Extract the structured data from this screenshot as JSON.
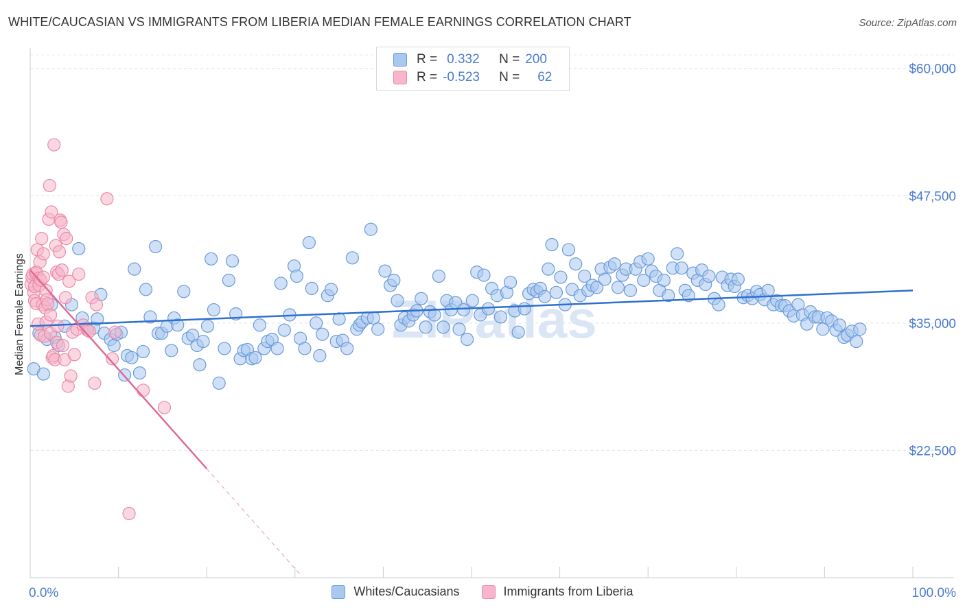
{
  "title": "WHITE/CAUCASIAN VS IMMIGRANTS FROM LIBERIA MEDIAN FEMALE EARNINGS CORRELATION CHART",
  "source": "Source: ZipAtlas.com",
  "legend": {
    "rows": [
      {
        "r_label": "R =",
        "r_value": "0.332",
        "n_label": "N =",
        "n_value": "200"
      },
      {
        "r_label": "R =",
        "r_value": "-0.523",
        "n_label": "N =",
        "n_value": "62"
      }
    ]
  },
  "colors": {
    "blue_fill": "#a9c8f0",
    "blue_stroke": "#6a9ad8",
    "blue_line": "#2f6fcf",
    "pink_fill": "#f7b6cb",
    "pink_stroke": "#e88aa8",
    "pink_line": "#e06a95",
    "axis_text": "#4a7bd0"
  },
  "chart_data": {
    "type": "scatter",
    "xlabel": "",
    "ylabel": "Median Female Earnings",
    "xlim": [
      0,
      100
    ],
    "ylim": [
      10000,
      62000
    ],
    "x_tick_labels": [
      "0.0%",
      "100.0%"
    ],
    "y_ticks": [
      22500,
      35000,
      47500,
      60000
    ],
    "y_tick_labels": [
      "$22,500",
      "$35,000",
      "$47,500",
      "$60,000"
    ],
    "grid": true,
    "watermark": "ZIPatlas",
    "series": [
      {
        "name": "Whites/Caucasians",
        "color": "#a9c8f0",
        "trend": {
          "x": [
            0,
            100
          ],
          "y": [
            34700,
            38200
          ]
        },
        "points": [
          [
            0.4,
            30500
          ],
          [
            1.0,
            34000
          ],
          [
            1.5,
            30000
          ],
          [
            1.9,
            33400
          ],
          [
            2.4,
            36800
          ],
          [
            2.8,
            33600
          ],
          [
            3.2,
            32800
          ],
          [
            3.9,
            34700
          ],
          [
            4.7,
            36800
          ],
          [
            5.5,
            42300
          ],
          [
            5.9,
            35500
          ],
          [
            6.4,
            34500
          ],
          [
            7.2,
            34500
          ],
          [
            7.6,
            35400
          ],
          [
            8.0,
            37800
          ],
          [
            8.4,
            34000
          ],
          [
            9.1,
            33400
          ],
          [
            9.5,
            32800
          ],
          [
            9.8,
            33900
          ],
          [
            10.3,
            34100
          ],
          [
            10.7,
            29900
          ],
          [
            11.0,
            31800
          ],
          [
            11.5,
            31600
          ],
          [
            11.8,
            40300
          ],
          [
            12.4,
            30100
          ],
          [
            12.8,
            32200
          ],
          [
            13.1,
            38300
          ],
          [
            13.6,
            35600
          ],
          [
            14.2,
            42500
          ],
          [
            14.5,
            34000
          ],
          [
            14.9,
            34000
          ],
          [
            15.5,
            34700
          ],
          [
            16.0,
            32300
          ],
          [
            16.3,
            35500
          ],
          [
            16.7,
            34800
          ],
          [
            17.4,
            38100
          ],
          [
            17.9,
            33500
          ],
          [
            18.4,
            33800
          ],
          [
            18.9,
            32800
          ],
          [
            19.2,
            30900
          ],
          [
            19.6,
            33200
          ],
          [
            20.1,
            34700
          ],
          [
            20.5,
            41300
          ],
          [
            20.8,
            36300
          ],
          [
            21.4,
            29100
          ],
          [
            22.0,
            32500
          ],
          [
            22.5,
            39200
          ],
          [
            22.9,
            41100
          ],
          [
            23.3,
            35900
          ],
          [
            23.8,
            31500
          ],
          [
            24.2,
            32300
          ],
          [
            24.6,
            32400
          ],
          [
            25.1,
            31500
          ],
          [
            25.5,
            31600
          ],
          [
            26.0,
            34800
          ],
          [
            26.5,
            32500
          ],
          [
            26.9,
            33200
          ],
          [
            27.4,
            33400
          ],
          [
            28.0,
            32500
          ],
          [
            28.4,
            38900
          ],
          [
            28.8,
            34300
          ],
          [
            29.4,
            35800
          ],
          [
            29.9,
            40600
          ],
          [
            30.2,
            39600
          ],
          [
            30.6,
            33500
          ],
          [
            31.1,
            32500
          ],
          [
            31.6,
            42900
          ],
          [
            31.9,
            38400
          ],
          [
            32.4,
            35000
          ],
          [
            32.8,
            31800
          ],
          [
            33.1,
            33900
          ],
          [
            33.7,
            37700
          ],
          [
            34.1,
            38300
          ],
          [
            34.7,
            33200
          ],
          [
            35.0,
            35400
          ],
          [
            35.4,
            33300
          ],
          [
            35.9,
            32500
          ],
          [
            36.5,
            41400
          ],
          [
            37.0,
            34400
          ],
          [
            37.3,
            34800
          ],
          [
            37.6,
            35100
          ],
          [
            38.2,
            35500
          ],
          [
            38.6,
            44200
          ],
          [
            38.9,
            35500
          ],
          [
            39.4,
            34400
          ],
          [
            40.2,
            40100
          ],
          [
            40.8,
            38700
          ],
          [
            41.2,
            39200
          ],
          [
            41.6,
            37200
          ],
          [
            42.0,
            34800
          ],
          [
            42.4,
            35500
          ],
          [
            42.9,
            35200
          ],
          [
            43.4,
            35800
          ],
          [
            43.8,
            36200
          ],
          [
            44.3,
            37400
          ],
          [
            44.8,
            34600
          ],
          [
            45.3,
            36100
          ],
          [
            45.8,
            35800
          ],
          [
            46.3,
            39600
          ],
          [
            46.8,
            34600
          ],
          [
            47.2,
            37200
          ],
          [
            47.7,
            36300
          ],
          [
            48.2,
            37000
          ],
          [
            48.6,
            34400
          ],
          [
            49.1,
            36300
          ],
          [
            49.5,
            33400
          ],
          [
            50.1,
            37200
          ],
          [
            50.6,
            40000
          ],
          [
            51.0,
            35800
          ],
          [
            51.4,
            39700
          ],
          [
            51.9,
            36400
          ],
          [
            52.3,
            38400
          ],
          [
            52.9,
            37700
          ],
          [
            53.3,
            35600
          ],
          [
            54.0,
            38000
          ],
          [
            54.4,
            39000
          ],
          [
            54.9,
            36200
          ],
          [
            55.3,
            34100
          ],
          [
            56.0,
            36400
          ],
          [
            56.5,
            37900
          ],
          [
            57.0,
            38300
          ],
          [
            57.4,
            38100
          ],
          [
            57.8,
            38400
          ],
          [
            58.3,
            37600
          ],
          [
            58.7,
            40300
          ],
          [
            59.1,
            42700
          ],
          [
            59.6,
            38000
          ],
          [
            60.1,
            39500
          ],
          [
            60.6,
            36800
          ],
          [
            61.0,
            42200
          ],
          [
            61.4,
            38300
          ],
          [
            61.8,
            40800
          ],
          [
            62.3,
            37700
          ],
          [
            62.8,
            39600
          ],
          [
            63.2,
            38200
          ],
          [
            63.7,
            38700
          ],
          [
            64.2,
            38500
          ],
          [
            64.7,
            40300
          ],
          [
            65.1,
            39300
          ],
          [
            65.7,
            40500
          ],
          [
            66.2,
            40800
          ],
          [
            66.6,
            38500
          ],
          [
            67.1,
            39700
          ],
          [
            67.5,
            40300
          ],
          [
            68.0,
            38200
          ],
          [
            68.6,
            40300
          ],
          [
            69.1,
            41000
          ],
          [
            69.5,
            39200
          ],
          [
            70.0,
            41300
          ],
          [
            70.4,
            40100
          ],
          [
            70.9,
            39600
          ],
          [
            71.3,
            38200
          ],
          [
            71.8,
            39200
          ],
          [
            72.3,
            37700
          ],
          [
            72.8,
            40400
          ],
          [
            73.3,
            41800
          ],
          [
            73.8,
            40400
          ],
          [
            74.2,
            38200
          ],
          [
            74.6,
            37700
          ],
          [
            75.1,
            39900
          ],
          [
            75.6,
            39200
          ],
          [
            76.1,
            40200
          ],
          [
            76.5,
            38800
          ],
          [
            76.9,
            39600
          ],
          [
            77.5,
            37400
          ],
          [
            78.0,
            36800
          ],
          [
            78.4,
            39500
          ],
          [
            79.0,
            38700
          ],
          [
            79.4,
            39300
          ],
          [
            79.8,
            38600
          ],
          [
            80.2,
            39300
          ],
          [
            80.8,
            37500
          ],
          [
            81.3,
            37700
          ],
          [
            81.8,
            37400
          ],
          [
            82.3,
            38100
          ],
          [
            82.7,
            37800
          ],
          [
            83.2,
            37300
          ],
          [
            83.6,
            38200
          ],
          [
            84.2,
            36800
          ],
          [
            84.6,
            37200
          ],
          [
            85.1,
            36700
          ],
          [
            85.5,
            36700
          ],
          [
            86.0,
            36200
          ],
          [
            86.5,
            35700
          ],
          [
            87.0,
            36800
          ],
          [
            87.5,
            35800
          ],
          [
            88.0,
            34900
          ],
          [
            88.4,
            36100
          ],
          [
            88.9,
            35600
          ],
          [
            89.3,
            35600
          ],
          [
            89.8,
            34400
          ],
          [
            90.3,
            35500
          ],
          [
            90.8,
            35200
          ],
          [
            91.3,
            34300
          ],
          [
            91.7,
            34800
          ],
          [
            92.2,
            33600
          ],
          [
            92.6,
            33800
          ],
          [
            93.1,
            34200
          ],
          [
            93.6,
            33200
          ],
          [
            94.0,
            34400
          ]
        ]
      },
      {
        "name": "Immigrants from Liberia",
        "color": "#f7b6cb",
        "trend": {
          "x": [
            0,
            20
          ],
          "y": [
            40200,
            20700
          ],
          "dashed_extension": {
            "x": [
              20,
              30.5
            ],
            "y": [
              20700,
              10400
            ]
          }
        },
        "points": [
          [
            0.1,
            38800
          ],
          [
            0.2,
            39500
          ],
          [
            0.3,
            39800
          ],
          [
            0.4,
            38000
          ],
          [
            0.5,
            38600
          ],
          [
            0.5,
            37200
          ],
          [
            0.6,
            39900
          ],
          [
            0.7,
            36900
          ],
          [
            0.7,
            40000
          ],
          [
            0.8,
            42200
          ],
          [
            0.9,
            34900
          ],
          [
            1.0,
            39400
          ],
          [
            1.0,
            38700
          ],
          [
            1.1,
            41000
          ],
          [
            1.2,
            33800
          ],
          [
            1.2,
            39200
          ],
          [
            1.3,
            43300
          ],
          [
            1.4,
            36800
          ],
          [
            1.5,
            41800
          ],
          [
            1.5,
            39500
          ],
          [
            1.6,
            33700
          ],
          [
            1.7,
            36500
          ],
          [
            1.8,
            35100
          ],
          [
            1.8,
            38200
          ],
          [
            1.9,
            37300
          ],
          [
            2.0,
            36900
          ],
          [
            2.1,
            45200
          ],
          [
            2.2,
            48500
          ],
          [
            2.3,
            35800
          ],
          [
            2.3,
            34000
          ],
          [
            2.4,
            45900
          ],
          [
            2.5,
            31600
          ],
          [
            2.6,
            31800
          ],
          [
            2.7,
            52500
          ],
          [
            2.8,
            31400
          ],
          [
            2.9,
            42600
          ],
          [
            3.0,
            33100
          ],
          [
            3.0,
            40000
          ],
          [
            3.1,
            34700
          ],
          [
            3.2,
            39800
          ],
          [
            3.3,
            42000
          ],
          [
            3.4,
            45100
          ],
          [
            3.5,
            44900
          ],
          [
            3.6,
            40200
          ],
          [
            3.7,
            32800
          ],
          [
            3.8,
            43700
          ],
          [
            3.9,
            31400
          ],
          [
            4.0,
            37500
          ],
          [
            4.1,
            43300
          ],
          [
            4.3,
            28800
          ],
          [
            4.4,
            39100
          ],
          [
            4.6,
            29800
          ],
          [
            4.8,
            34100
          ],
          [
            5.0,
            31900
          ],
          [
            5.3,
            34400
          ],
          [
            5.5,
            39800
          ],
          [
            6.0,
            34800
          ],
          [
            6.5,
            34300
          ],
          [
            7.0,
            37500
          ],
          [
            7.3,
            29100
          ],
          [
            12.8,
            28400
          ],
          [
            15.2,
            26700
          ]
        ]
      },
      {
        "name": "",
        "color": "#f7b6cb",
        "points": [
          [
            11.2,
            16300
          ],
          [
            8.7,
            47200
          ],
          [
            9.3,
            31500
          ],
          [
            9.6,
            34100
          ],
          [
            7.5,
            36800
          ],
          [
            6.7,
            34200
          ]
        ]
      }
    ]
  },
  "bottom_legend": [
    {
      "label": "Whites/Caucasians",
      "color": "#a9c8f0"
    },
    {
      "label": "Immigrants from Liberia",
      "color": "#f7b6cb"
    }
  ]
}
